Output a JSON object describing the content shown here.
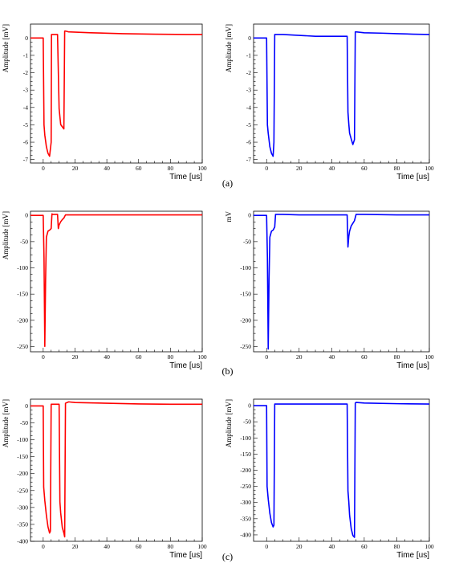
{
  "panel_labels": [
    "(a)",
    "(b)",
    "(c)"
  ],
  "colors": {
    "left": "#ff0000",
    "right": "#0000ff",
    "axis": "#000000"
  },
  "chart_data": [
    {
      "id": "a-left",
      "type": "line",
      "row": 0,
      "col": 0,
      "color": "#ff0000",
      "xlabel": "Time [us]",
      "ylabel": "Amplitude [mV]",
      "xlim": [
        -8,
        100
      ],
      "ylim": [
        -7.2,
        0.8
      ],
      "xticks": [
        0,
        20,
        40,
        60,
        80,
        100
      ],
      "yticks": [
        0,
        -1,
        -2,
        -3,
        -4,
        -5,
        -6,
        -7
      ],
      "series": [
        {
          "x": [
            -8,
            0,
            0.5,
            1,
            2,
            3,
            4,
            5,
            5.2,
            5.6,
            6,
            8,
            9,
            10,
            10.5,
            11,
            12,
            13,
            13.5,
            14,
            16,
            30,
            50,
            70,
            90,
            100
          ],
          "y": [
            0,
            0,
            -5,
            -5.6,
            -6.2,
            -6.6,
            -6.8,
            -6.0,
            0.2,
            0.2,
            0.2,
            0.2,
            0.2,
            -4.0,
            -4.6,
            -5.0,
            -5.1,
            -5.2,
            0.4,
            0.4,
            0.35,
            0.3,
            0.25,
            0.22,
            0.2,
            0.2
          ]
        }
      ]
    },
    {
      "id": "a-right",
      "type": "line",
      "row": 0,
      "col": 1,
      "color": "#0000ff",
      "xlabel": "Time [us]",
      "ylabel": "Amplitude [mV]",
      "xlim": [
        -8,
        100
      ],
      "ylim": [
        -7.2,
        0.8
      ],
      "xticks": [
        0,
        20,
        40,
        60,
        80,
        100
      ],
      "yticks": [
        0,
        -1,
        -2,
        -3,
        -4,
        -5,
        -6,
        -7
      ],
      "series": [
        {
          "x": [
            -8,
            0,
            0.5,
            1,
            2,
            3,
            4,
            4.5,
            5,
            6,
            10,
            20,
            30,
            40,
            45,
            49.5,
            50,
            50.5,
            51,
            52,
            53,
            54,
            54.5,
            55,
            60,
            70,
            80,
            90,
            100
          ],
          "y": [
            0,
            0,
            -5,
            -5.5,
            -6.2,
            -6.6,
            -6.8,
            -6.0,
            0.2,
            0.2,
            0.2,
            0.15,
            0.1,
            0.1,
            0.1,
            0.1,
            -4.2,
            -5.0,
            -5.5,
            -5.8,
            -6.1,
            -5.9,
            0.35,
            0.35,
            0.3,
            0.28,
            0.25,
            0.22,
            0.2
          ]
        }
      ]
    },
    {
      "id": "b-left",
      "type": "line",
      "row": 1,
      "col": 0,
      "color": "#ff0000",
      "xlabel": "Time [us]",
      "ylabel": "Amplitude [mV]",
      "xlim": [
        -8,
        100
      ],
      "ylim": [
        -260,
        8
      ],
      "xticks": [
        0,
        20,
        40,
        60,
        80,
        100
      ],
      "yticks": [
        0,
        -50,
        -100,
        -150,
        -200,
        -250
      ],
      "series": [
        {
          "x": [
            -8,
            0,
            0.5,
            1,
            1.5,
            2,
            3,
            4,
            5,
            5.5,
            6,
            8,
            9,
            9.5,
            10,
            11,
            12,
            13,
            14,
            20,
            40,
            60,
            80,
            100
          ],
          "y": [
            0,
            0,
            -80,
            -250,
            -120,
            -40,
            -30,
            -28,
            -25,
            3,
            2,
            2,
            2,
            -25,
            -18,
            -12,
            -8,
            -5,
            1,
            1,
            1,
            1,
            1,
            1
          ]
        }
      ]
    },
    {
      "id": "b-right",
      "type": "line",
      "row": 1,
      "col": 1,
      "color": "#0000ff",
      "xlabel": "Time [us]",
      "ylabel": "mV",
      "xlim": [
        -8,
        100
      ],
      "ylim": [
        -260,
        8
      ],
      "xticks": [
        0,
        20,
        40,
        60,
        80,
        100
      ],
      "yticks": [
        0,
        -50,
        -100,
        -150,
        -200,
        -250
      ],
      "series": [
        {
          "x": [
            -8,
            0,
            0.5,
            1,
            1.5,
            2,
            3,
            4,
            5,
            5.5,
            10,
            20,
            30,
            40,
            49.5,
            50,
            50.5,
            51,
            52,
            53,
            54,
            55,
            60,
            80,
            100
          ],
          "y": [
            0,
            0,
            -80,
            -255,
            -120,
            -40,
            -30,
            -28,
            -22,
            2,
            2,
            1,
            1,
            1,
            1,
            -60,
            -40,
            -30,
            -20,
            -15,
            -10,
            2,
            2,
            1,
            1
          ]
        }
      ]
    },
    {
      "id": "c-left",
      "type": "line",
      "row": 2,
      "col": 0,
      "color": "#ff0000",
      "xlabel": "Time [us]",
      "ylabel": "Amplitude [mV]",
      "xlim": [
        -8,
        100
      ],
      "ylim": [
        -400,
        20
      ],
      "xticks": [
        0,
        20,
        40,
        60,
        80,
        100
      ],
      "yticks": [
        0,
        -50,
        -100,
        -150,
        -200,
        -250,
        -300,
        -350,
        -400
      ],
      "series": [
        {
          "x": [
            -8,
            0,
            0.3,
            1,
            2,
            3,
            4,
            4.5,
            5,
            6,
            8,
            10,
            10.5,
            11,
            12,
            13,
            13.5,
            14,
            16,
            20,
            40,
            60,
            80,
            100
          ],
          "y": [
            0,
            0,
            -240,
            -280,
            -320,
            -355,
            -375,
            -370,
            5,
            5,
            5,
            5,
            -280,
            -320,
            -360,
            -375,
            -385,
            8,
            12,
            10,
            8,
            6,
            5,
            5
          ]
        }
      ]
    },
    {
      "id": "c-right",
      "type": "line",
      "row": 2,
      "col": 1,
      "color": "#0000ff",
      "xlabel": "Time [us]",
      "ylabel": "Amplitude [mV]",
      "xlim": [
        -8,
        100
      ],
      "ylim": [
        -420,
        20
      ],
      "xticks": [
        0,
        20,
        40,
        60,
        80,
        100
      ],
      "yticks": [
        0,
        -50,
        -100,
        -150,
        -200,
        -250,
        -300,
        -350,
        -400
      ],
      "series": [
        {
          "x": [
            -8,
            0,
            0.3,
            1,
            2,
            3,
            4,
            4.5,
            5,
            6,
            10,
            20,
            30,
            40,
            49.5,
            50,
            50.5,
            51,
            52,
            53,
            54,
            54.5,
            55,
            60,
            80,
            100
          ],
          "y": [
            0,
            0,
            -250,
            -290,
            -330,
            -360,
            -375,
            -370,
            5,
            5,
            5,
            5,
            5,
            5,
            5,
            -260,
            -300,
            -340,
            -380,
            -400,
            -410,
            8,
            10,
            8,
            6,
            5
          ]
        }
      ]
    }
  ]
}
